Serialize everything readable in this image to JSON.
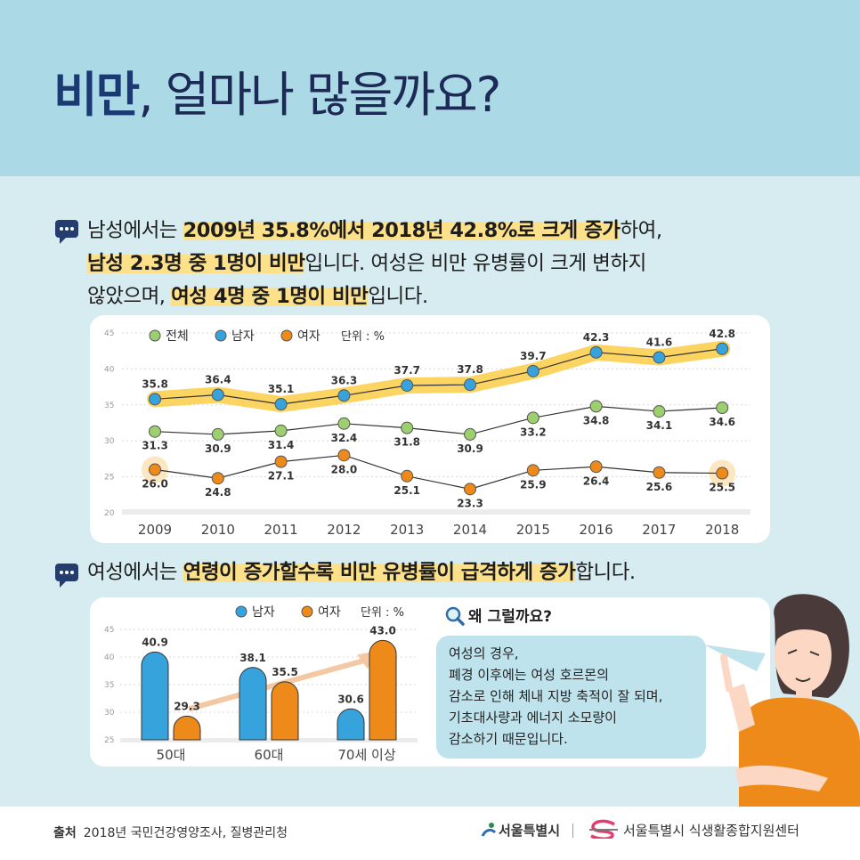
{
  "header": {
    "title_bold": "비만",
    "title_rest": ", 얼마나 많을까요?"
  },
  "section1": {
    "l1a": "남성에서는 ",
    "l1b": "2009년 35.8%에서 2018년 42.8%로 크게 증가",
    "l1c": "하여,",
    "l2a": "남성 2.3명 중 1명이 비만",
    "l2b": "입니다. 여성은 비만 유병률이 크게 변하지",
    "l3a": "않았으며, ",
    "l3b": "여성 4명 중 1명이 비만",
    "l3c": "입니다."
  },
  "section2": {
    "l1a": "여성에서는 ",
    "l1b": "연령이 증가할수록 비만 유병률이 급격하게 증가",
    "l1c": "합니다."
  },
  "why": {
    "title": "왜 그럴까요?",
    "lines": [
      "여성의 경우,",
      "폐경 이후에는 여성 호르몬의",
      "감소로 인해 체내 지방 축적이 잘 되며,",
      "기초대사량과 에너지 소모량이",
      "감소하기 때문입니다."
    ]
  },
  "footer": {
    "source_label": "출처",
    "source_text": "2018년 국민건강영양조사, 질병관리청",
    "logo1": "서울특별시",
    "logo2": "서울특별시 식생활종합지원센터"
  },
  "colors": {
    "total": "#9ccf6e",
    "male": "#36a3dc",
    "female": "#ee8a1a",
    "highlight": "#fbcd45"
  },
  "chart_data": [
    {
      "type": "line",
      "x": [
        "2009",
        "2010",
        "2011",
        "2012",
        "2013",
        "2014",
        "2015",
        "2016",
        "2017",
        "2018"
      ],
      "series": [
        {
          "name": "전체",
          "values": [
            31.3,
            30.9,
            31.4,
            32.4,
            31.8,
            30.9,
            33.2,
            34.8,
            34.1,
            34.6
          ]
        },
        {
          "name": "남자",
          "values": [
            35.8,
            36.4,
            35.1,
            36.3,
            37.7,
            37.8,
            39.7,
            42.3,
            41.6,
            42.8
          ]
        },
        {
          "name": "여자",
          "values": [
            26.0,
            24.8,
            27.1,
            28.0,
            25.1,
            23.3,
            25.9,
            26.4,
            25.6,
            25.5
          ]
        }
      ],
      "unit_label": "단위 : %",
      "yticks": [
        "20",
        "25",
        "30",
        "35",
        "40",
        "45"
      ],
      "ylim": [
        20,
        45
      ],
      "legend": "top-left"
    },
    {
      "type": "bar",
      "categories": [
        "50대",
        "60대",
        "70세 이상"
      ],
      "series": [
        {
          "name": "남자",
          "values": [
            40.9,
            38.1,
            30.6
          ]
        },
        {
          "name": "여자",
          "values": [
            29.3,
            35.5,
            43.0
          ]
        }
      ],
      "unit_label": "단위 : %",
      "yticks": [
        "25",
        "30",
        "35",
        "40",
        "45"
      ],
      "ylim": [
        25,
        45
      ],
      "legend": "top"
    }
  ]
}
